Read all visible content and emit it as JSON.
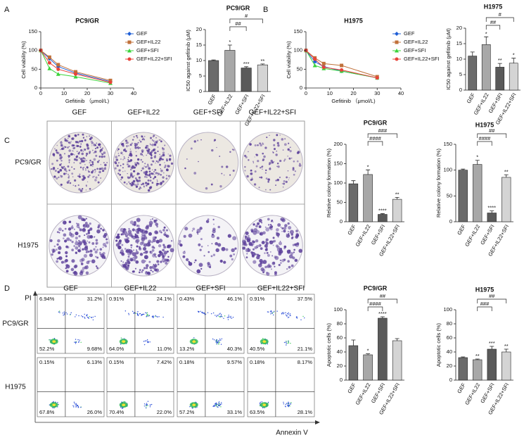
{
  "panel_labels": [
    "A",
    "B",
    "C",
    "D"
  ],
  "chart_data": [
    {
      "type": "line",
      "title": "PC9/GR",
      "xlabel": "Gefitinib （μmol/L)",
      "ylabel": "Cell viability (%)",
      "x": [
        0,
        3.75,
        7.5,
        15,
        30
      ],
      "xlim": [
        0,
        40
      ],
      "xticks": [
        0,
        10,
        20,
        30,
        40
      ],
      "ylim": [
        0,
        150
      ],
      "yticks": [
        0,
        50,
        100,
        150
      ],
      "series": [
        {
          "name": "GEF",
          "color": "#1f5fd6",
          "values": [
            100,
            78,
            57,
            40,
            17
          ]
        },
        {
          "name": "GEF+IL22",
          "color": "#c0703a",
          "values": [
            100,
            82,
            62,
            43,
            20
          ]
        },
        {
          "name": "GEF+SFI",
          "color": "#3bd43b",
          "values": [
            100,
            52,
            37,
            30,
            13
          ]
        },
        {
          "name": "GEF+IL22+SFI",
          "color": "#e8433a",
          "values": [
            100,
            67,
            50,
            37,
            15
          ]
        }
      ]
    },
    {
      "type": "bar",
      "title": "PC9/GR",
      "ylabel": "IC50 against gefitinib (μM)",
      "categories": [
        "GEF",
        "GEF+IL22",
        "GEF+SFI",
        "GEF+IL22+SFI"
      ],
      "values": [
        10,
        13.3,
        7.6,
        8.6
      ],
      "errors": [
        0.2,
        1.7,
        0.4,
        0.3
      ],
      "colors": [
        "#6b6b6b",
        "#a8a8a8",
        "#5a5a5a",
        "#d4d4d4"
      ],
      "ylim": [
        0,
        20
      ],
      "yticks": [
        0,
        5,
        10,
        15,
        20
      ],
      "stars": [
        null,
        "*",
        "***",
        "**"
      ],
      "brackets": [
        {
          "label": "##",
          "from": "GEF+IL22",
          "to": "GEF+SFI"
        },
        {
          "label": "#",
          "from": "GEF+IL22",
          "to": "GEF+IL22+SFI"
        }
      ]
    },
    {
      "type": "line",
      "title": "H1975",
      "xlabel": "Gefitinib （μmol/L)",
      "ylabel": "Cell viability (%)",
      "x": [
        0,
        3.75,
        7.5,
        15,
        30
      ],
      "xlim": [
        0,
        40
      ],
      "xticks": [
        0,
        10,
        20,
        30,
        40
      ],
      "ylim": [
        0,
        150
      ],
      "yticks": [
        0,
        50,
        100,
        150
      ],
      "series": [
        {
          "name": "GEF",
          "color": "#1f5fd6",
          "values": [
            100,
            70,
            57,
            45,
            27
          ]
        },
        {
          "name": "GEF+IL22",
          "color": "#c0703a",
          "values": [
            100,
            80,
            65,
            60,
            30
          ]
        },
        {
          "name": "GEF+SFI",
          "color": "#3bd43b",
          "values": [
            100,
            60,
            52,
            45,
            27
          ]
        },
        {
          "name": "GEF+IL22+SFI",
          "color": "#e8433a",
          "values": [
            100,
            77,
            55,
            48,
            27
          ]
        }
      ]
    },
    {
      "type": "bar",
      "title": "H1975",
      "ylabel": "IC50 against gefitinib (μM)",
      "categories": [
        "GEF",
        "GEF+IL22",
        "GEF+SFI",
        "GEF+IL22+SFI"
      ],
      "values": [
        11,
        14.7,
        7.4,
        8.7
      ],
      "errors": [
        1.3,
        2.5,
        1.2,
        1.6
      ],
      "colors": [
        "#6b6b6b",
        "#a8a8a8",
        "#5a5a5a",
        "#d4d4d4"
      ],
      "ylim": [
        0,
        20
      ],
      "yticks": [
        0,
        5,
        10,
        15,
        20
      ],
      "stars": [
        null,
        "*",
        "**",
        "*"
      ],
      "brackets": [
        {
          "label": "##",
          "from": "GEF+IL22",
          "to": "GEF+SFI"
        },
        {
          "label": "#",
          "from": "GEF+IL22",
          "to": "GEF+IL22+SFI"
        }
      ]
    },
    {
      "type": "bar",
      "title": "PC9/GR",
      "ylabel": "Relative colony formation (%)",
      "categories": [
        "GEF",
        "GEF+IL22",
        "GEF+SFI",
        "GEF+IL22+SFI"
      ],
      "values": [
        98,
        122,
        19,
        58
      ],
      "errors": [
        8,
        12,
        2,
        5
      ],
      "colors": [
        "#6b6b6b",
        "#a8a8a8",
        "#5a5a5a",
        "#d4d4d4"
      ],
      "ylim": [
        0,
        200
      ],
      "yticks": [
        0,
        50,
        100,
        150,
        200
      ],
      "stars": [
        null,
        "*",
        "****",
        "**"
      ],
      "brackets": [
        {
          "label": "####",
          "from": "GEF+IL22",
          "to": "GEF+SFI"
        },
        {
          "label": "###",
          "from": "GEF+IL22",
          "to": "GEF+IL22+SFI"
        }
      ]
    },
    {
      "type": "bar",
      "title": "H1975",
      "ylabel": "Relative colony formation (%)",
      "categories": [
        "GEF",
        "GEF+IL22",
        "GEF+SFI",
        "GEF+IL22+SFI"
      ],
      "values": [
        100,
        111,
        17,
        86
      ],
      "errors": [
        2,
        8,
        4,
        5
      ],
      "colors": [
        "#6b6b6b",
        "#a8a8a8",
        "#5a5a5a",
        "#d4d4d4"
      ],
      "ylim": [
        0,
        150
      ],
      "yticks": [
        0,
        50,
        100,
        150
      ],
      "stars": [
        null,
        "*",
        "****",
        "**"
      ],
      "brackets": [
        {
          "label": "####",
          "from": "GEF+IL22",
          "to": "GEF+SFI"
        },
        {
          "label": "##",
          "from": "GEF+IL22",
          "to": "GEF+IL22+SFI"
        }
      ]
    },
    {
      "type": "bar",
      "title": "PC9/GR",
      "ylabel": "Apoptotic cells (%)",
      "categories": [
        "GEF",
        "GEF+IL22",
        "GEF+SFI",
        "GEF+IL22+SFI"
      ],
      "values": [
        49,
        36,
        88,
        56
      ],
      "errors": [
        8,
        1.5,
        2,
        3
      ],
      "colors": [
        "#6b6b6b",
        "#a8a8a8",
        "#5a5a5a",
        "#d4d4d4"
      ],
      "ylim": [
        0,
        100
      ],
      "yticks": [
        0,
        20,
        40,
        60,
        80,
        100
      ],
      "stars": [
        null,
        "*",
        "****",
        null
      ],
      "brackets": [
        {
          "label": "####",
          "from": "GEF+IL22",
          "to": "GEF+SFI"
        },
        {
          "label": "##",
          "from": "GEF+IL22",
          "to": "GEF+IL22+SFI"
        }
      ]
    },
    {
      "type": "bar",
      "title": "H1975",
      "ylabel": "Apoptotic cells (%)",
      "categories": [
        "GEF",
        "GEF+IL22",
        "GEF+SFI",
        "GEF+IL22+SFI"
      ],
      "values": [
        32,
        29,
        44,
        40
      ],
      "errors": [
        1,
        1,
        4,
        4
      ],
      "colors": [
        "#6b6b6b",
        "#a8a8a8",
        "#5a5a5a",
        "#d4d4d4"
      ],
      "ylim": [
        0,
        100
      ],
      "yticks": [
        0,
        20,
        40,
        60,
        80,
        100
      ],
      "stars": [
        null,
        "**",
        "***",
        "**"
      ],
      "brackets": [
        {
          "label": "###",
          "from": "GEF+IL22",
          "to": "GEF+SFI"
        },
        {
          "label": "##",
          "from": "GEF+IL22",
          "to": "GEF+IL22+SFI"
        }
      ]
    }
  ],
  "colony_image": {
    "columns": [
      "GEF",
      "GEF+IL22",
      "GEF+SFI",
      "GEF+IL22+SFI"
    ],
    "rows": [
      "PC9/GR",
      "H1975"
    ]
  },
  "flow_cytometry": {
    "columns": [
      "GEF",
      "GEF+IL22",
      "GEF+SFI",
      "GEF+IL22+SFI"
    ],
    "rows": [
      "PC9/GR",
      "H1975"
    ],
    "y_axis_label": "PI",
    "x_axis_label": "Annexin V",
    "quadrants": [
      [
        [
          "6.94%",
          "31.2%",
          "52.2%",
          "9.68%"
        ],
        [
          "0.91%",
          "24.1%",
          "64.0%",
          "11.0%"
        ],
        [
          "0.43%",
          "46.1%",
          "13.2%",
          "40.3%"
        ],
        [
          "0.91%",
          "37.5%",
          "40.5%",
          "21.1%"
        ]
      ],
      [
        [
          "0.15%",
          "6.13%",
          "67.8%",
          "26.0%"
        ],
        [
          "0.15%",
          "7.42%",
          "70.4%",
          "22.0%"
        ],
        [
          "0.18%",
          "9.57%",
          "57.2%",
          "33.1%"
        ],
        [
          "0.18%",
          "8.17%",
          "63.5%",
          "28.1%"
        ]
      ]
    ]
  }
}
